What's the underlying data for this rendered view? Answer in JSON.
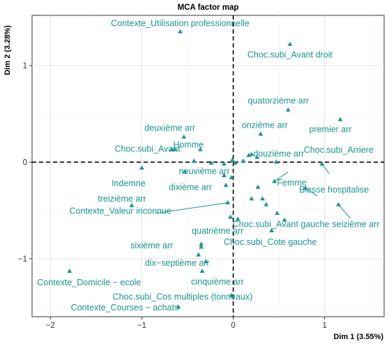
{
  "chart_data": {
    "type": "scatter",
    "title": "MCA factor map",
    "xlabel": "Dim 1 (3.55%)",
    "ylabel": "Dim 2 (3.28%)",
    "xlim": [
      -2.2,
      1.65
    ],
    "ylim": [
      -1.6,
      1.52
    ],
    "xticks": [
      -2,
      -1,
      0,
      1
    ],
    "yticks": [
      -1,
      0,
      1
    ],
    "grid": true,
    "point_color": "#18958f",
    "points": [
      {
        "x": -0.58,
        "y": 1.35,
        "label": "Contexte_Utilisation professionnelle"
      },
      {
        "x": 0.62,
        "y": 1.22,
        "label": "Choc.subi_Avant droit"
      },
      {
        "x": 0.6,
        "y": 0.54,
        "label": "quatorzième arr"
      },
      {
        "x": 1.17,
        "y": 0.44,
        "label": "premier arr"
      },
      {
        "x": 0.3,
        "y": 0.29,
        "label": "onzième arr"
      },
      {
        "x": -0.54,
        "y": 0.26,
        "label": "deuxième arr"
      },
      {
        "x": 0.97,
        "y": -0.02,
        "label": "Choc.subi_Arriere"
      },
      {
        "x": -0.64,
        "y": 0.13,
        "label": "Choc.subi_Avant"
      },
      {
        "x": -0.36,
        "y": 0.13,
        "label": "Homme"
      },
      {
        "x": 0.2,
        "y": 0.08,
        "label": "douzième arr"
      },
      {
        "x": -1.0,
        "y": -0.06,
        "label": "Indemne"
      },
      {
        "x": -0.53,
        "y": -0.1,
        "label": "neuvième arr"
      },
      {
        "x": 0.45,
        "y": -0.2,
        "label": "Femme"
      },
      {
        "x": 0.79,
        "y": -0.27,
        "label": "Blesse hospitalise"
      },
      {
        "x": -0.08,
        "y": -0.24,
        "label": "dixième arr"
      },
      {
        "x": -1.11,
        "y": -0.45,
        "label": "treizième arr"
      },
      {
        "x": 1.15,
        "y": -0.44,
        "label": "seizième arr"
      },
      {
        "x": -0.06,
        "y": -0.42,
        "label": "Contexte_Valeur inconnue"
      },
      {
        "x": 0.56,
        "y": -0.6,
        "label": "Choc.subi_Avant gauche"
      },
      {
        "x": 0.05,
        "y": -0.59,
        "label": "quatrième arr"
      },
      {
        "x": 0.42,
        "y": -0.71,
        "label": "Choc.subi_Cote gauche"
      },
      {
        "x": -0.35,
        "y": -0.85,
        "label": "sixième arr"
      },
      {
        "x": -0.3,
        "y": -1.03,
        "label": "dix−septième arr"
      },
      {
        "x": -1.79,
        "y": -1.13,
        "label": "Contexte_Domicile − ecole"
      },
      {
        "x": -0.34,
        "y": -1.13,
        "label": "cinquième arr"
      },
      {
        "x": -0.02,
        "y": -1.38,
        "label": "Choc.subi_Cos multiples (tonneaux)"
      },
      {
        "x": -0.6,
        "y": -1.5,
        "label": "Contexte_Courses − achats"
      },
      {
        "x": -0.67,
        "y": 0.13,
        "label": ""
      },
      {
        "x": -0.43,
        "y": 0.01,
        "label": ""
      },
      {
        "x": -0.24,
        "y": -0.01,
        "label": ""
      },
      {
        "x": -0.1,
        "y": -0.02,
        "label": ""
      },
      {
        "x": -0.01,
        "y": 0.02,
        "label": ""
      },
      {
        "x": 0.02,
        "y": -0.01,
        "label": ""
      },
      {
        "x": 0.11,
        "y": 0.01,
        "label": ""
      },
      {
        "x": 0.17,
        "y": 0.07,
        "label": ""
      },
      {
        "x": 0.26,
        "y": 0.05,
        "label": ""
      },
      {
        "x": 0.47,
        "y": 0.0,
        "label": ""
      },
      {
        "x": -0.1,
        "y": -0.14,
        "label": ""
      },
      {
        "x": -0.02,
        "y": -0.16,
        "label": ""
      },
      {
        "x": 0.27,
        "y": -0.26,
        "label": ""
      },
      {
        "x": 0.32,
        "y": -0.38,
        "label": ""
      },
      {
        "x": 0.36,
        "y": -0.44,
        "label": ""
      },
      {
        "x": 0.2,
        "y": -0.38,
        "label": ""
      },
      {
        "x": 0.48,
        "y": -0.53,
        "label": ""
      },
      {
        "x": -0.03,
        "y": -0.57,
        "label": ""
      },
      {
        "x": -0.35,
        "y": -0.88,
        "label": ""
      },
      {
        "x": -0.38,
        "y": -0.96,
        "label": ""
      }
    ]
  }
}
